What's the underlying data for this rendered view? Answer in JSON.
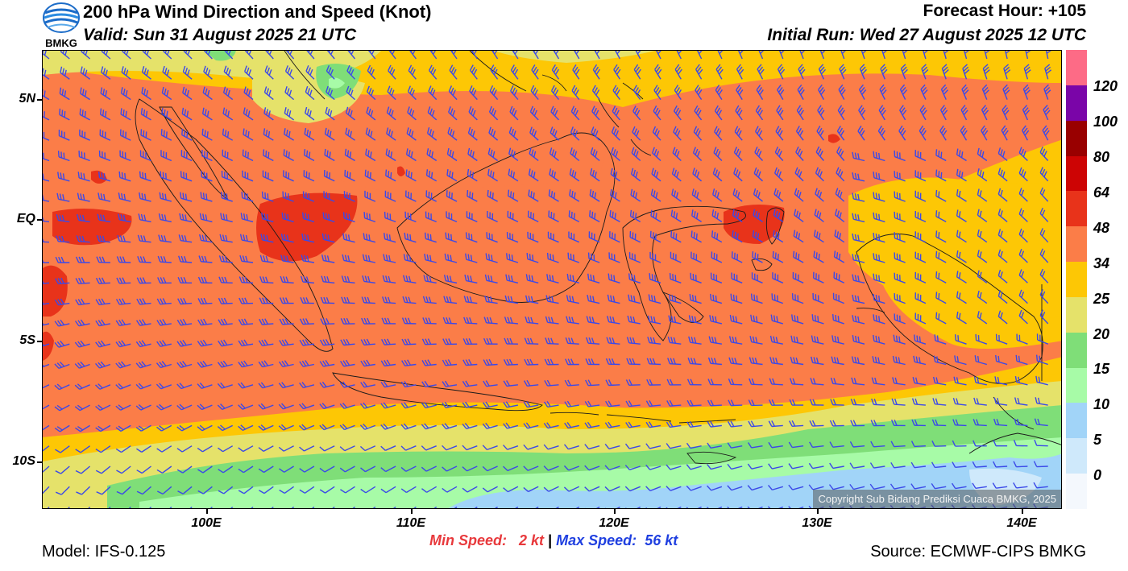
{
  "header": {
    "title": "200 hPa Wind Direction and Speed (Knot)",
    "valid": "Valid: Sun 31 August 2025 21 UTC",
    "forecast_hour": "Forecast Hour: +105",
    "initial_run": "Initial Run: Wed 27 August 2025 12 UTC",
    "logo_text": "BMKG"
  },
  "map": {
    "lat_labels": [
      "5N",
      "EQ",
      "5S",
      "10S"
    ],
    "lon_labels": [
      "100E",
      "110E",
      "120E",
      "130E",
      "140E"
    ],
    "copyright": "Copyright Sub Bidang Prediksi Cuaca BMKG, 2025",
    "colors": {
      "barb": "#3b49e8",
      "coast": "#1a1a1a"
    }
  },
  "colorbar": {
    "labels": [
      "0",
      "5",
      "10",
      "15",
      "20",
      "25",
      "34",
      "48",
      "64",
      "80",
      "100",
      "120"
    ],
    "colors": [
      "#f4f8fd",
      "#cfe9fb",
      "#a1d4f8",
      "#a7fba7",
      "#7fde78",
      "#e5e26a",
      "#fdc705",
      "#fb7d48",
      "#e8331a",
      "#cd0404",
      "#990000",
      "#7a05a8",
      "#fd6b86"
    ]
  },
  "footer": {
    "min_label": "Min Speed:",
    "min_value": "2 kt",
    "separator": "|",
    "max_label": "Max Speed:",
    "max_value": "56 kt",
    "model": "Model: IFS-0.125",
    "source": "Source: ECMWF-CIPS BMKG"
  }
}
